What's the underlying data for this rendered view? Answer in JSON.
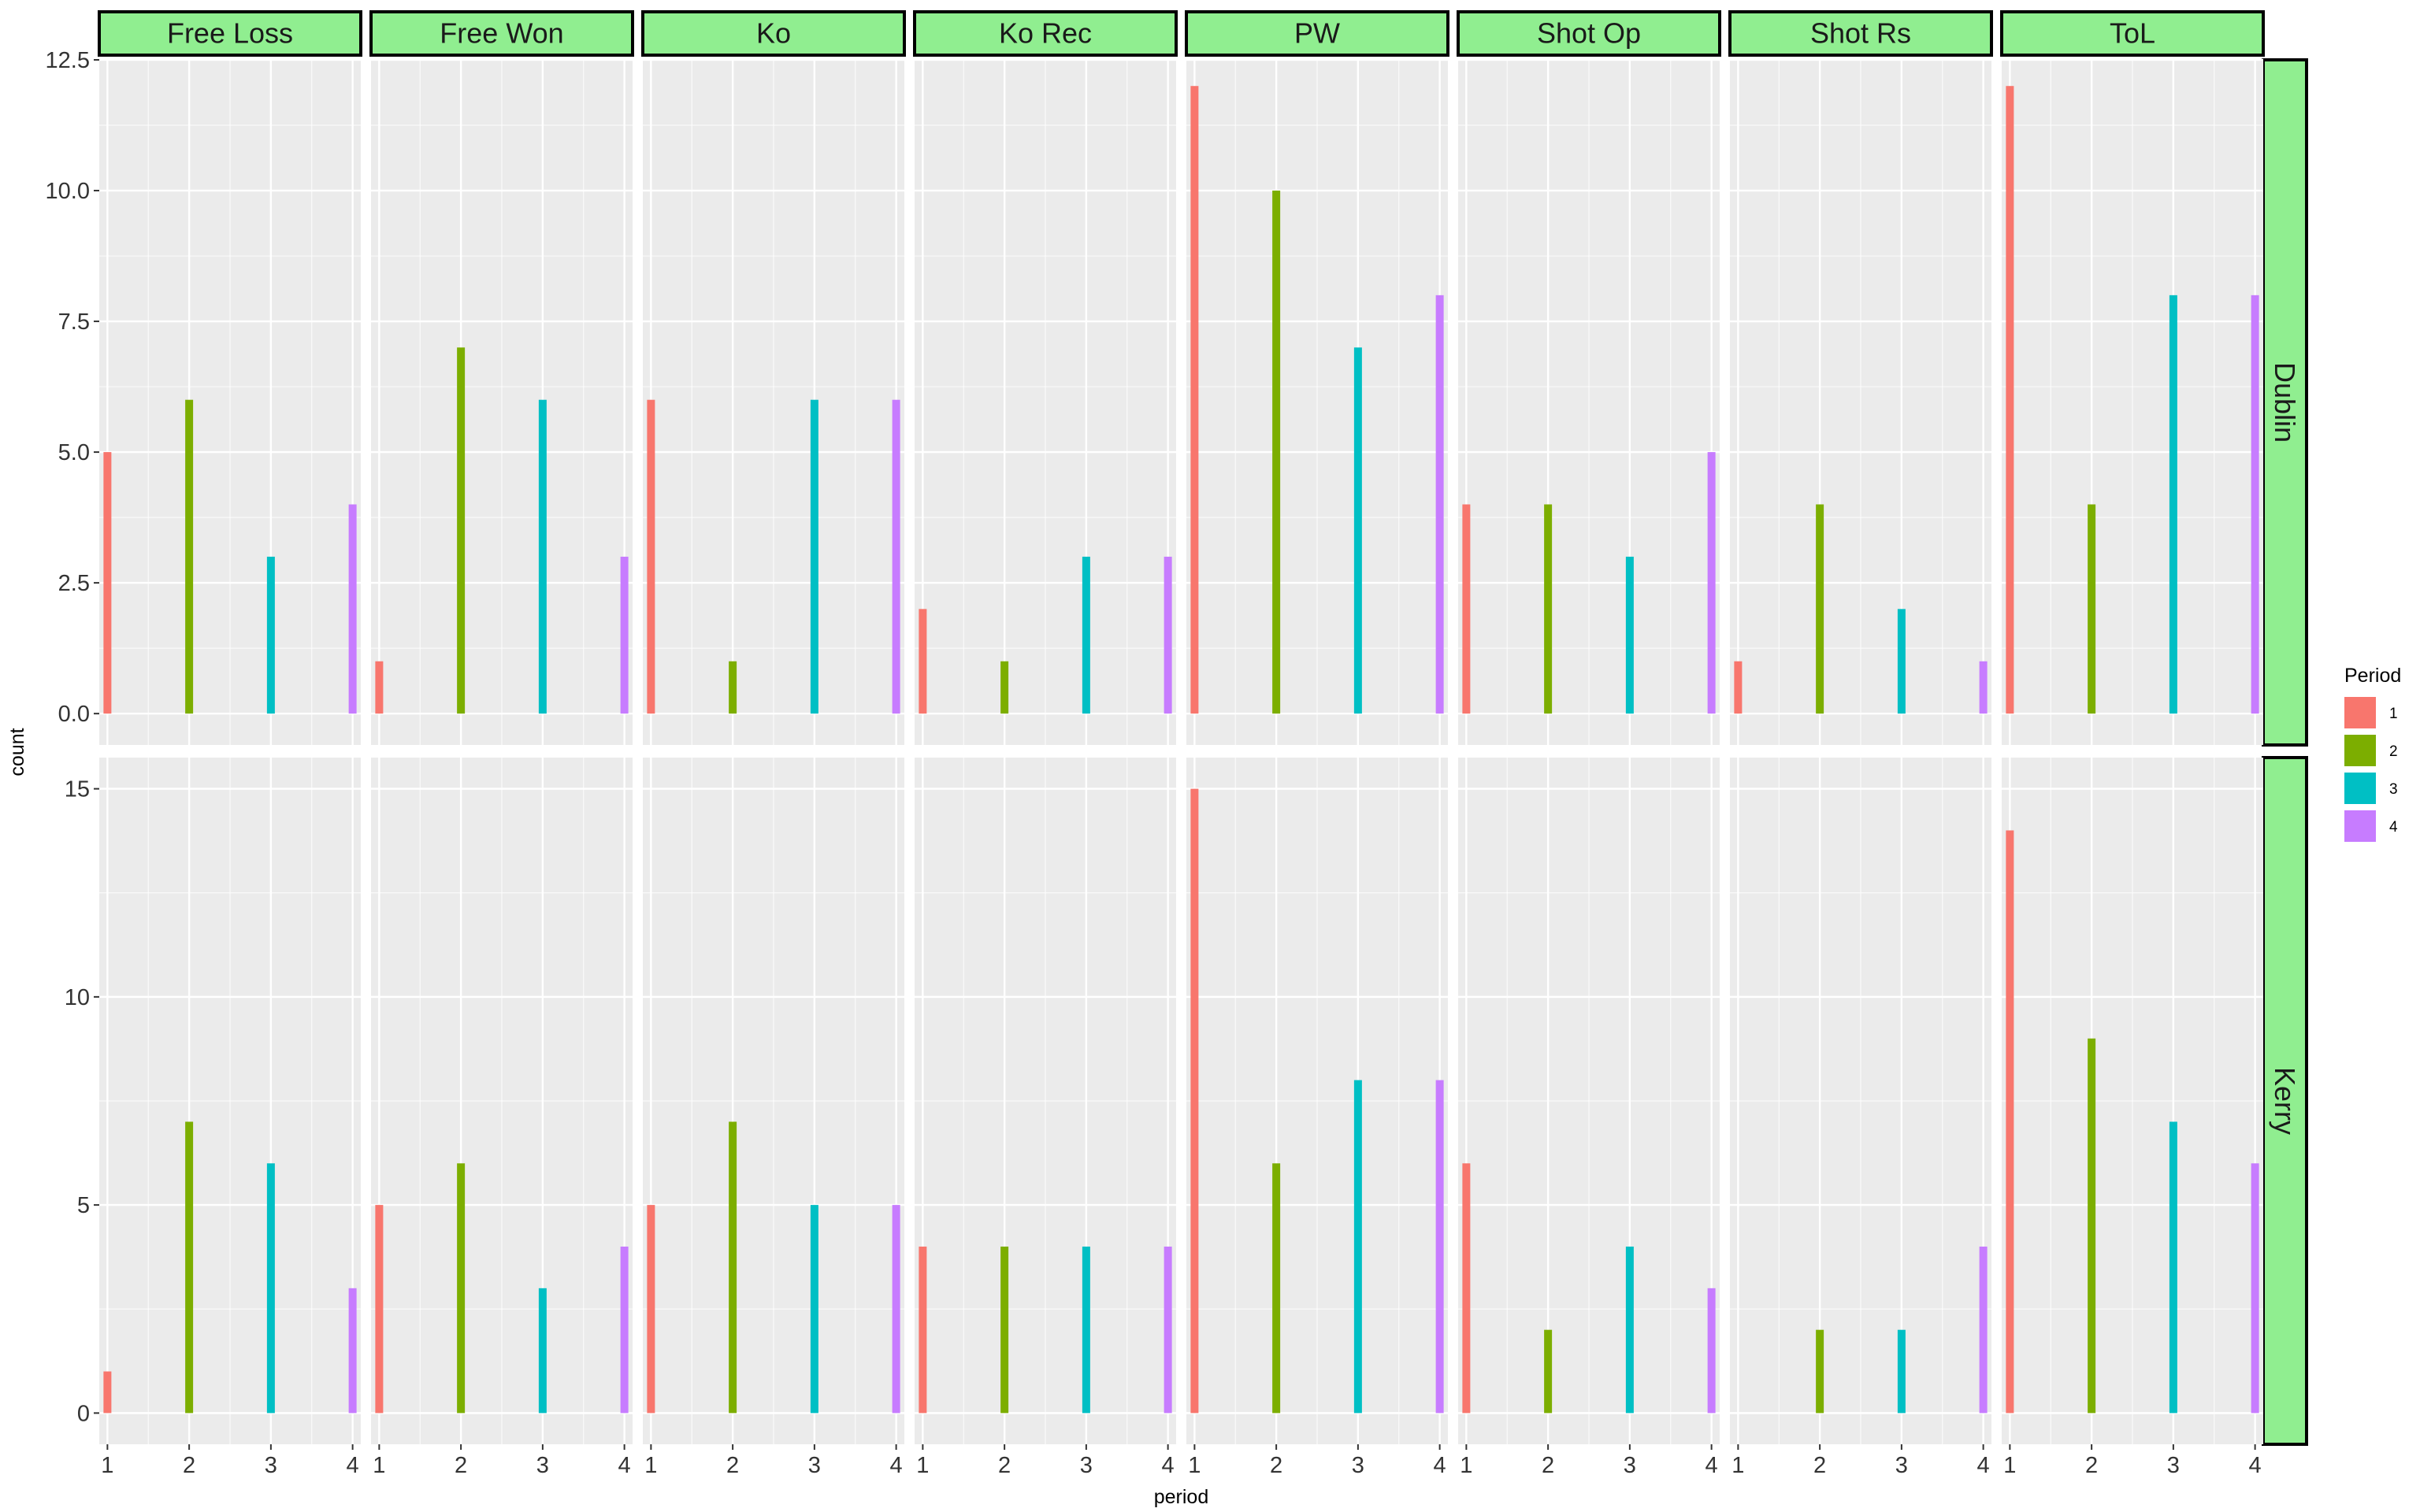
{
  "chart_data": {
    "type": "bar",
    "facet_columns": [
      "Free Loss",
      "Free Won",
      "Ko",
      "Ko Rec",
      "PW",
      "Shot Op",
      "Shot Rs",
      "ToL"
    ],
    "facet_rows": [
      "Dublin",
      "Kerry"
    ],
    "x": [
      1,
      2,
      3,
      4
    ],
    "xlabel": "period",
    "ylabel": "count",
    "legend": {
      "title": "Period",
      "entries": [
        "1",
        "2",
        "3",
        "4"
      ],
      "position": "right"
    },
    "colors": {
      "1": "#F8766D",
      "2": "#7CAE00",
      "3": "#00BFC4",
      "4": "#C77CFF"
    },
    "strip_fill": "#90EE90",
    "panel_background": "#EBEBEB",
    "grid": true,
    "rows": [
      {
        "name": "Dublin",
        "ylim": [
          -0.6,
          12.5
        ],
        "yticks": [
          0,
          2.5,
          5,
          7.5,
          10,
          12.5
        ],
        "ytick_labels": [
          "0.0",
          "2.5",
          "5.0",
          "7.5",
          "10.0",
          "12.5"
        ],
        "values": {
          "Free Loss": [
            5,
            6,
            3,
            4
          ],
          "Free Won": [
            1,
            7,
            6,
            3
          ],
          "Ko": [
            6,
            1,
            6,
            6
          ],
          "Ko Rec": [
            2,
            1,
            3,
            3
          ],
          "PW": [
            12,
            10,
            7,
            8
          ],
          "Shot Op": [
            4,
            4,
            3,
            5
          ],
          "Shot Rs": [
            1,
            4,
            2,
            1
          ],
          "ToL": [
            12,
            4,
            8,
            8
          ]
        }
      },
      {
        "name": "Kerry",
        "ylim": [
          -0.75,
          15.75
        ],
        "yticks": [
          0,
          5,
          10,
          15
        ],
        "ytick_labels": [
          "0",
          "5",
          "10",
          "15"
        ],
        "values": {
          "Free Loss": [
            1,
            7,
            6,
            3
          ],
          "Free Won": [
            5,
            6,
            3,
            4
          ],
          "Ko": [
            5,
            7,
            5,
            5
          ],
          "Ko Rec": [
            4,
            4,
            4,
            4
          ],
          "PW": [
            15,
            6,
            8,
            8
          ],
          "Shot Op": [
            6,
            2,
            4,
            3
          ],
          "Shot Rs": [
            0,
            2,
            2,
            4
          ],
          "ToL": [
            14,
            9,
            7,
            6
          ]
        }
      }
    ]
  }
}
